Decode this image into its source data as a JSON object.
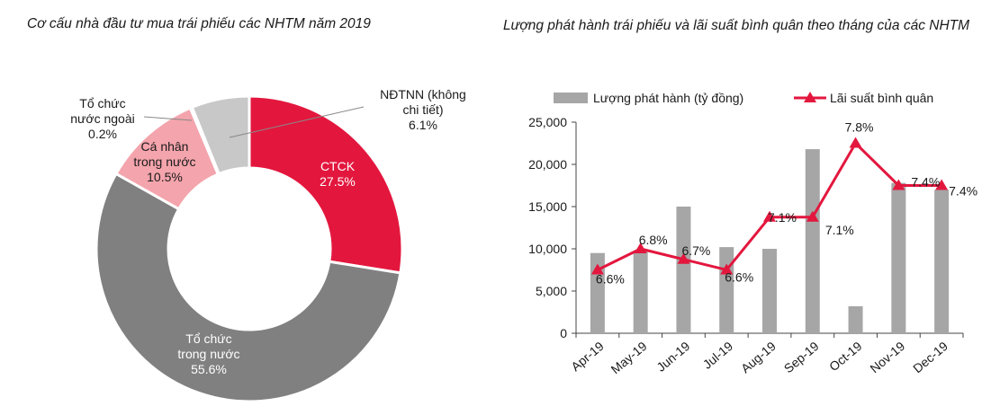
{
  "left": {
    "title": "Cơ cấu nhà đầu tư mua trái phiếu các NHTM năm 2019",
    "chart_data": {
      "type": "pie",
      "variant": "donut",
      "title": "Cơ cấu nhà đầu tư mua trái phiếu các NHTM năm 2019",
      "slices": [
        {
          "name": "CTCK",
          "value": 27.5,
          "label": "27.5%",
          "color": "#e3173e"
        },
        {
          "name": "Tổ chức trong nước",
          "value": 55.6,
          "label": "55.6%",
          "color": "#808080"
        },
        {
          "name": "Cá nhân trong nước",
          "value": 10.5,
          "label": "10.5%",
          "color": "#f4a4ac"
        },
        {
          "name": "Tổ chức nước ngoài",
          "value": 0.2,
          "label": "0.2%",
          "color": "#e8e8e8"
        },
        {
          "name": "NĐTNN (không chi tiết)",
          "value": 6.1,
          "label": "6.1%",
          "color": "#c8c8c8"
        }
      ],
      "label_lines": {
        "ctck": [
          "CTCK",
          "27.5%"
        ],
        "domestic_org": [
          "Tổ chức",
          "trong nước",
          "55.6%"
        ],
        "individual": [
          "Cá nhân",
          "trong nước",
          "10.5%"
        ],
        "foreign_org": [
          "Tổ chức",
          "nước ngoài",
          "0.2%"
        ],
        "foreign_unspecified": [
          "NĐTNN  (không",
          "chi tiết)",
          "6.1%"
        ]
      }
    }
  },
  "right": {
    "title": "Lượng phát hành trái phiếu và lãi suất bình quân theo tháng của các NHTM",
    "chart_data": {
      "type": "bar",
      "combo": "bar+line",
      "categories": [
        "Apr-19",
        "May-19",
        "Jun-19",
        "Jul-19",
        "Aug-19",
        "Sep-19",
        "Oct-19",
        "Nov-19",
        "Dec-19"
      ],
      "series": [
        {
          "name": "Lượng phát hành (tỷ đồng)",
          "type": "bar",
          "color": "#a6a6a6",
          "values": [
            9500,
            9700,
            15000,
            10200,
            10000,
            21800,
            3200,
            17800,
            17000
          ]
        },
        {
          "name": "Lãi suất bình quân",
          "type": "line",
          "color": "#e3173e",
          "values": [
            6.6,
            6.8,
            6.7,
            6.6,
            7.1,
            7.1,
            7.8,
            7.4,
            7.4
          ],
          "labels": [
            "6.6%",
            "6.8%",
            "6.7%",
            "6.6%",
            "7.1%",
            "7.1%",
            "7.8%",
            "7.4%",
            "7.4%"
          ]
        }
      ],
      "y_ticks": [
        "0",
        "5,000",
        "10,000",
        "15,000",
        "20,000",
        "25,000"
      ],
      "ylim": [
        0,
        25000
      ],
      "rate_ylim": [
        6.0,
        8.0
      ],
      "legend_position": "top"
    }
  }
}
